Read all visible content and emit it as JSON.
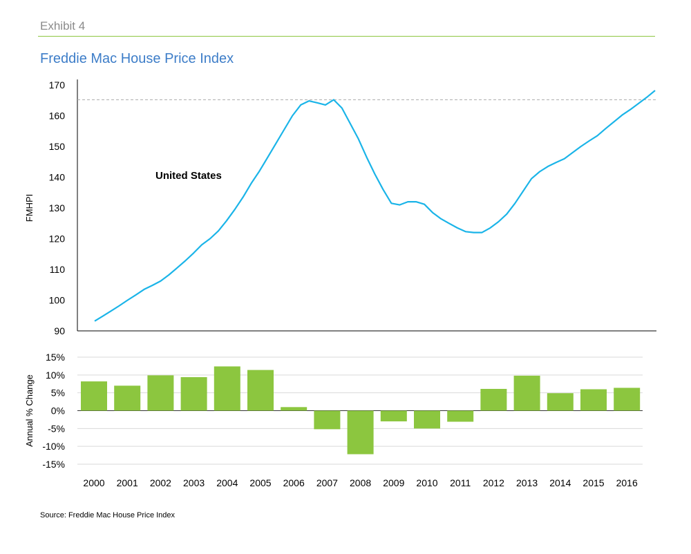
{
  "header": {
    "exhibit": "Exhibit 4",
    "title": "Freddie Mac House Price Index"
  },
  "footer": {
    "source": "Source: Freddie Mac House Price Index"
  },
  "colors": {
    "accent_rule": "#8cc63f",
    "title": "#3d7dc8",
    "line": "#1ab4e8",
    "bars": "#8cc63f",
    "grid": "#d9d9d9",
    "reference": "#aaaaaa"
  },
  "chart_data": [
    {
      "type": "line",
      "title": "Freddie Mac House Price Index",
      "ylabel": "FMHPI",
      "ylim": [
        90,
        170
      ],
      "yticks": [
        90,
        100,
        110,
        120,
        130,
        140,
        150,
        160,
        170
      ],
      "reference_line": 165.2,
      "annotation": "United States",
      "series": [
        {
          "name": "United States",
          "x": [
            2000.0,
            2000.25,
            2000.5,
            2000.75,
            2001.0,
            2001.25,
            2001.5,
            2001.75,
            2002.0,
            2002.25,
            2002.5,
            2002.75,
            2003.0,
            2003.25,
            2003.5,
            2003.75,
            2004.0,
            2004.25,
            2004.5,
            2004.75,
            2005.0,
            2005.25,
            2005.5,
            2005.75,
            2006.0,
            2006.25,
            2006.5,
            2006.75,
            2007.0,
            2007.25,
            2007.5,
            2007.75,
            2008.0,
            2008.25,
            2008.5,
            2008.75,
            2009.0,
            2009.25,
            2009.5,
            2009.75,
            2010.0,
            2010.25,
            2010.5,
            2010.75,
            2011.0,
            2011.25,
            2011.5,
            2011.75,
            2012.0,
            2012.25,
            2012.5,
            2012.75,
            2013.0,
            2013.25,
            2013.5,
            2013.75,
            2014.0,
            2014.25,
            2014.5,
            2014.75,
            2015.0,
            2015.25,
            2015.5,
            2015.75,
            2016.0,
            2016.25,
            2016.5,
            2016.75,
            2017.0
          ],
          "values": [
            93.2,
            94.8,
            96.5,
            98.2,
            100.0,
            101.7,
            103.5,
            104.8,
            106.2,
            108.2,
            110.5,
            112.8,
            115.3,
            118.0,
            120.0,
            122.5,
            125.8,
            129.5,
            133.5,
            138.0,
            142.0,
            146.5,
            151.0,
            155.5,
            160.0,
            163.5,
            164.8,
            164.2,
            163.5,
            165.2,
            162.5,
            157.5,
            152.5,
            146.5,
            141.0,
            136.0,
            131.5,
            131.0,
            132.0,
            132.0,
            131.2,
            128.5,
            126.5,
            125.0,
            123.5,
            122.3,
            122.0,
            122.0,
            123.5,
            125.5,
            128.0,
            131.5,
            135.5,
            139.5,
            141.8,
            143.5,
            144.8,
            146.0,
            148.0,
            150.0,
            151.8,
            153.5,
            155.8,
            158.0,
            160.2,
            162.0,
            164.0,
            166.0,
            168.2
          ]
        }
      ]
    },
    {
      "type": "bar",
      "ylabel": "Annual % Change",
      "ylim": [
        -15,
        15
      ],
      "ytick_labels": [
        "15%",
        "10%",
        "5%",
        "0%",
        "-5%",
        "-10%",
        "-15%"
      ],
      "yticks": [
        15,
        10,
        5,
        0,
        -5,
        -10,
        -15
      ],
      "categories": [
        "2000",
        "2001",
        "2002",
        "2003",
        "2004",
        "2005",
        "2006",
        "2007",
        "2008",
        "2009",
        "2010",
        "2011",
        "2012",
        "2013",
        "2014",
        "2015",
        "2016"
      ],
      "values": [
        8.2,
        7.0,
        9.9,
        9.4,
        12.4,
        11.4,
        1.0,
        -5.2,
        -12.2,
        -3.0,
        -5.0,
        -3.1,
        6.1,
        9.8,
        4.9,
        6.0,
        6.4
      ]
    }
  ]
}
